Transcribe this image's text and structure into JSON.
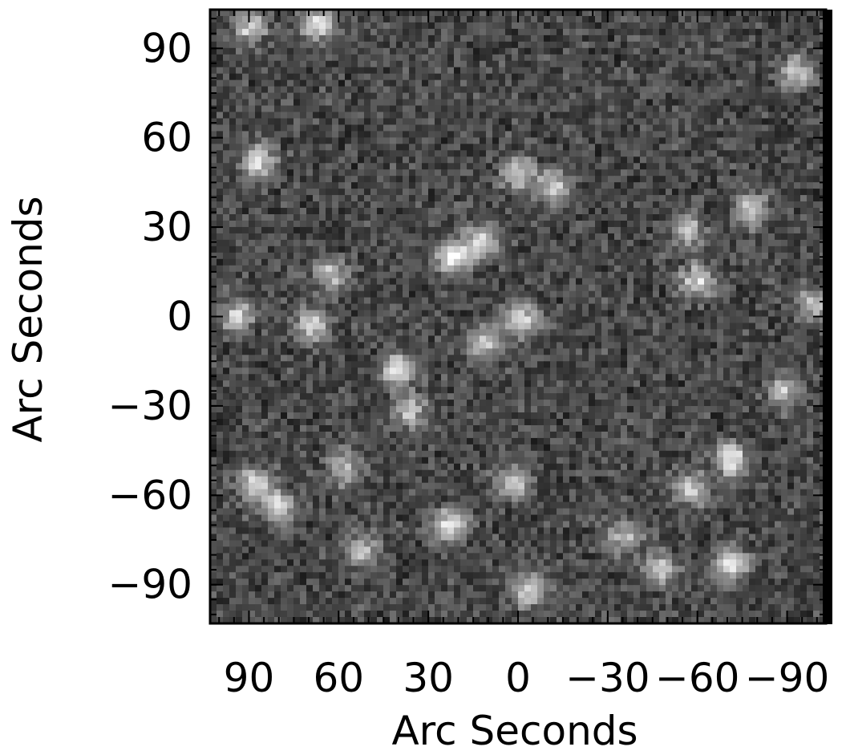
{
  "image": {
    "description_free": true,
    "colormap": "grayscale",
    "background": "#ffffff",
    "frame_color": "#000000"
  },
  "chart_data": {
    "type": "heatmap",
    "title": "",
    "xlabel": "Arc Seconds",
    "ylabel": "Arc Seconds",
    "xlim": [
      103,
      -103
    ],
    "ylim": [
      -103,
      103
    ],
    "x_ticks": [
      90,
      60,
      30,
      0,
      -30,
      -60,
      -90
    ],
    "y_ticks": [
      90,
      60,
      30,
      0,
      -30,
      -60,
      -90
    ],
    "x_tick_labels": [
      "90",
      "60",
      "30",
      "0",
      "−30",
      "−60",
      "−90"
    ],
    "y_tick_labels": [
      "90",
      "60",
      "30",
      "0",
      "−30",
      "−60",
      "−90"
    ],
    "grid": false,
    "legend": "none",
    "bright_sources": [
      {
        "x": 22,
        "y": 20,
        "intensity": 0.95
      },
      {
        "x": 12,
        "y": 25,
        "intensity": 0.85
      },
      {
        "x": -1,
        "y": -1,
        "intensity": 0.85
      },
      {
        "x": -12,
        "y": 43,
        "intensity": 0.8
      },
      {
        "x": 0,
        "y": 48,
        "intensity": 0.7
      },
      {
        "x": 40,
        "y": -18,
        "intensity": 0.85
      },
      {
        "x": 69,
        "y": -3,
        "intensity": 0.75
      },
      {
        "x": 2,
        "y": -56,
        "intensity": 0.75
      },
      {
        "x": 23,
        "y": -70,
        "intensity": 0.85
      },
      {
        "x": -71,
        "y": -48,
        "intensity": 0.9
      },
      {
        "x": -71,
        "y": -83,
        "intensity": 0.9
      },
      {
        "x": -47,
        "y": -85,
        "intensity": 0.75
      },
      {
        "x": 88,
        "y": -56,
        "intensity": 0.8
      },
      {
        "x": 80,
        "y": -64,
        "intensity": 0.8
      },
      {
        "x": 87,
        "y": 52,
        "intensity": 0.8
      },
      {
        "x": 11,
        "y": -9,
        "intensity": 0.7
      },
      {
        "x": -60,
        "y": 12,
        "intensity": 0.75
      },
      {
        "x": -78,
        "y": 36,
        "intensity": 0.7
      },
      {
        "x": 63,
        "y": 14,
        "intensity": 0.65
      },
      {
        "x": 94,
        "y": 0,
        "intensity": 0.7
      },
      {
        "x": -4,
        "y": -92,
        "intensity": 0.8
      },
      {
        "x": -99,
        "y": 4,
        "intensity": 0.7
      },
      {
        "x": -89,
        "y": -25,
        "intensity": 0.65
      },
      {
        "x": -58,
        "y": -58,
        "intensity": 0.7
      },
      {
        "x": 67,
        "y": 98,
        "intensity": 0.8
      },
      {
        "x": 90,
        "y": 97,
        "intensity": 0.7
      },
      {
        "x": -57,
        "y": 29,
        "intensity": 0.6
      },
      {
        "x": 36,
        "y": -32,
        "intensity": 0.6
      },
      {
        "x": 58,
        "y": -51,
        "intensity": 0.6
      },
      {
        "x": -35,
        "y": -74,
        "intensity": 0.65
      },
      {
        "x": 52,
        "y": -79,
        "intensity": 0.6
      },
      {
        "x": -93,
        "y": 82,
        "intensity": 0.65
      }
    ]
  }
}
